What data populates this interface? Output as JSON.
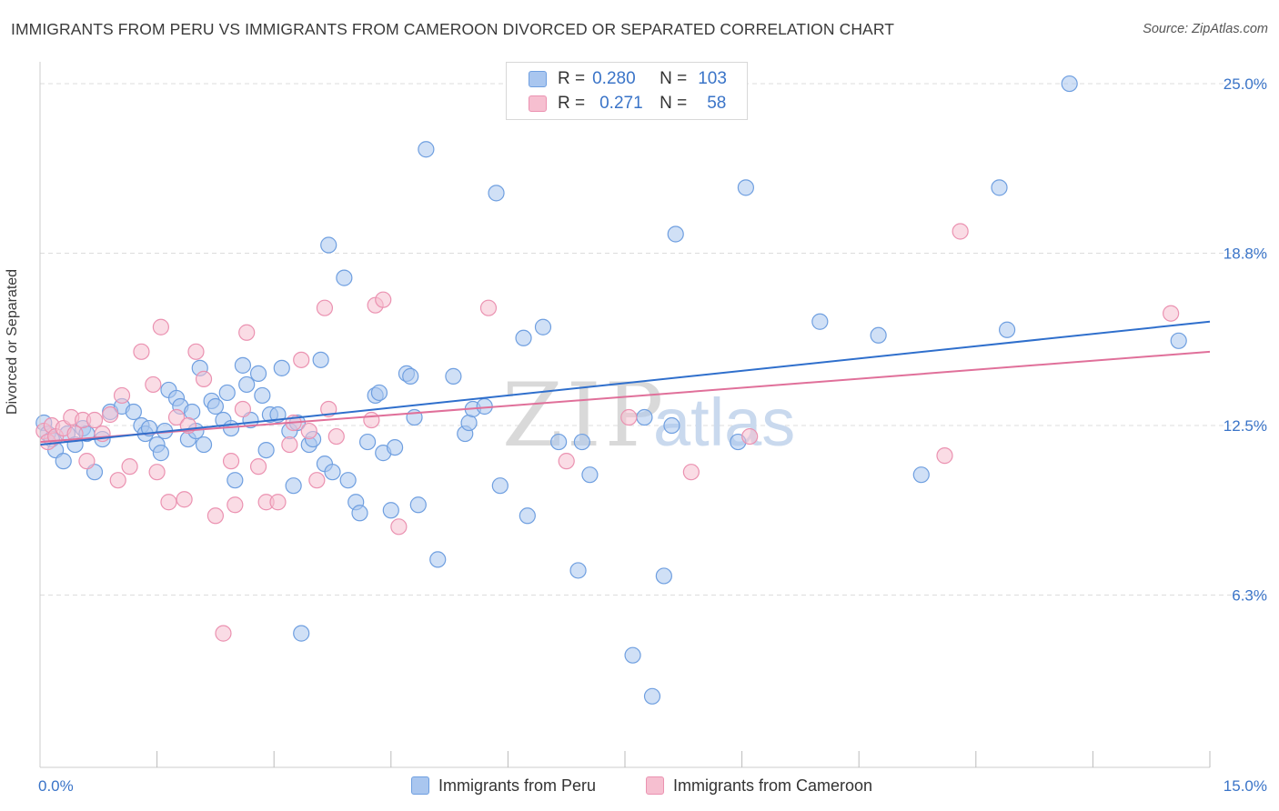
{
  "title": "IMMIGRANTS FROM PERU VS IMMIGRANTS FROM CAMEROON DIVORCED OR SEPARATED CORRELATION CHART",
  "source": "Source: ZipAtlas.com",
  "watermark": {
    "zip": "ZIP",
    "atlas": "atlas"
  },
  "legend": {
    "r_label": "R =",
    "n_label": "N =",
    "series": [
      {
        "r": "0.280",
        "n": "103"
      },
      {
        "r": "0.271",
        "n": "58"
      }
    ]
  },
  "bottom_legend": [
    "Immigrants from Peru",
    "Immigrants from Cameroon"
  ],
  "colors": {
    "peru_fill": "#a9c6ef",
    "peru_stroke": "#6f9fe0",
    "peru_line": "#2f6fcc",
    "cameroon_fill": "#f6bfd0",
    "cameroon_stroke": "#eb92b1",
    "cameroon_line": "#e0709a",
    "tick_text": "#3a74c8",
    "grid": "#dddddd"
  },
  "chart_data": {
    "type": "scatter",
    "title": "IMMIGRANTS FROM PERU VS IMMIGRANTS FROM CAMEROON DIVORCED OR SEPARATED CORRELATION CHART",
    "xlabel": "",
    "ylabel": "Divorced or Separated",
    "xlim": [
      0,
      15
    ],
    "ylim": [
      0,
      25.8
    ],
    "x_tick_labels": [
      "0.0%",
      "15.0%"
    ],
    "y_ticks": [
      6.3,
      12.5,
      18.8,
      25.0
    ],
    "y_tick_labels": [
      "6.3%",
      "12.5%",
      "18.8%",
      "25.0%"
    ],
    "grid": true,
    "series": [
      {
        "name": "Immigrants from Peru",
        "trend": [
          [
            0,
            11.8
          ],
          [
            15,
            16.3
          ]
        ],
        "points": [
          [
            0.05,
            12.6
          ],
          [
            0.1,
            12.2
          ],
          [
            0.15,
            12.0
          ],
          [
            0.2,
            11.6
          ],
          [
            0.3,
            11.2
          ],
          [
            0.35,
            12.2
          ],
          [
            0.45,
            11.8
          ],
          [
            0.55,
            12.4
          ],
          [
            0.6,
            12.2
          ],
          [
            0.7,
            10.8
          ],
          [
            0.8,
            12.0
          ],
          [
            0.9,
            13.0
          ],
          [
            1.05,
            13.2
          ],
          [
            1.2,
            13.0
          ],
          [
            1.3,
            12.5
          ],
          [
            1.35,
            12.2
          ],
          [
            1.4,
            12.4
          ],
          [
            1.5,
            11.8
          ],
          [
            1.55,
            11.5
          ],
          [
            1.6,
            12.3
          ],
          [
            1.65,
            13.8
          ],
          [
            1.75,
            13.5
          ],
          [
            1.8,
            13.2
          ],
          [
            1.9,
            12.0
          ],
          [
            1.95,
            13.0
          ],
          [
            2.0,
            12.3
          ],
          [
            2.05,
            14.6
          ],
          [
            2.1,
            11.8
          ],
          [
            2.2,
            13.4
          ],
          [
            2.25,
            13.2
          ],
          [
            2.35,
            12.7
          ],
          [
            2.4,
            13.7
          ],
          [
            2.45,
            12.4
          ],
          [
            2.5,
            10.5
          ],
          [
            2.6,
            14.7
          ],
          [
            2.65,
            14.0
          ],
          [
            2.7,
            12.7
          ],
          [
            2.8,
            14.4
          ],
          [
            2.85,
            13.6
          ],
          [
            2.9,
            11.6
          ],
          [
            2.95,
            12.9
          ],
          [
            3.05,
            12.9
          ],
          [
            3.1,
            14.6
          ],
          [
            3.2,
            12.3
          ],
          [
            3.25,
            10.3
          ],
          [
            3.3,
            12.6
          ],
          [
            3.35,
            4.9
          ],
          [
            3.45,
            11.8
          ],
          [
            3.5,
            12.0
          ],
          [
            3.6,
            14.9
          ],
          [
            3.65,
            11.1
          ],
          [
            3.7,
            19.1
          ],
          [
            3.75,
            10.8
          ],
          [
            3.9,
            17.9
          ],
          [
            3.95,
            10.5
          ],
          [
            4.05,
            9.7
          ],
          [
            4.1,
            9.3
          ],
          [
            4.2,
            11.9
          ],
          [
            4.3,
            13.6
          ],
          [
            4.35,
            13.7
          ],
          [
            4.4,
            11.5
          ],
          [
            4.5,
            9.4
          ],
          [
            4.55,
            11.7
          ],
          [
            4.7,
            14.4
          ],
          [
            4.75,
            14.3
          ],
          [
            4.8,
            12.8
          ],
          [
            4.85,
            9.6
          ],
          [
            4.95,
            22.6
          ],
          [
            5.1,
            7.6
          ],
          [
            5.3,
            14.3
          ],
          [
            5.45,
            12.2
          ],
          [
            5.5,
            12.6
          ],
          [
            5.55,
            13.1
          ],
          [
            5.7,
            13.2
          ],
          [
            5.85,
            21.0
          ],
          [
            5.9,
            10.3
          ],
          [
            6.2,
            15.7
          ],
          [
            6.25,
            9.2
          ],
          [
            6.45,
            16.1
          ],
          [
            6.65,
            11.9
          ],
          [
            6.75,
            24.4
          ],
          [
            6.9,
            7.2
          ],
          [
            6.95,
            11.9
          ],
          [
            7.05,
            10.7
          ],
          [
            7.6,
            4.1
          ],
          [
            7.75,
            12.8
          ],
          [
            7.85,
            2.6
          ],
          [
            8.0,
            7.0
          ],
          [
            8.1,
            12.5
          ],
          [
            8.15,
            19.5
          ],
          [
            8.95,
            11.9
          ],
          [
            9.05,
            21.2
          ],
          [
            10.0,
            16.3
          ],
          [
            10.75,
            15.8
          ],
          [
            11.3,
            10.7
          ],
          [
            12.3,
            21.2
          ],
          [
            12.4,
            16.0
          ],
          [
            13.2,
            25.0
          ],
          [
            14.6,
            15.6
          ]
        ]
      },
      {
        "name": "Immigrants from Cameroon",
        "trend": [
          [
            0,
            11.9
          ],
          [
            15,
            15.2
          ]
        ],
        "points": [
          [
            0.05,
            12.3
          ],
          [
            0.1,
            11.9
          ],
          [
            0.15,
            12.5
          ],
          [
            0.2,
            12.1
          ],
          [
            0.3,
            12.4
          ],
          [
            0.4,
            12.8
          ],
          [
            0.45,
            12.2
          ],
          [
            0.55,
            12.7
          ],
          [
            0.6,
            11.2
          ],
          [
            0.7,
            12.7
          ],
          [
            0.8,
            12.2
          ],
          [
            0.9,
            12.9
          ],
          [
            1.0,
            10.5
          ],
          [
            1.05,
            13.6
          ],
          [
            1.15,
            11.0
          ],
          [
            1.3,
            15.2
          ],
          [
            1.45,
            14.0
          ],
          [
            1.5,
            10.8
          ],
          [
            1.55,
            16.1
          ],
          [
            1.65,
            9.7
          ],
          [
            1.75,
            12.8
          ],
          [
            1.85,
            9.8
          ],
          [
            1.9,
            12.5
          ],
          [
            2.0,
            15.2
          ],
          [
            2.1,
            14.2
          ],
          [
            2.25,
            9.2
          ],
          [
            2.35,
            4.9
          ],
          [
            2.45,
            11.2
          ],
          [
            2.5,
            9.6
          ],
          [
            2.6,
            13.1
          ],
          [
            2.65,
            15.9
          ],
          [
            2.8,
            11.0
          ],
          [
            2.9,
            9.7
          ],
          [
            3.05,
            9.7
          ],
          [
            3.2,
            11.8
          ],
          [
            3.25,
            12.6
          ],
          [
            3.35,
            14.9
          ],
          [
            3.45,
            12.3
          ],
          [
            3.55,
            10.5
          ],
          [
            3.65,
            16.8
          ],
          [
            3.7,
            13.1
          ],
          [
            3.8,
            12.1
          ],
          [
            4.25,
            12.7
          ],
          [
            4.3,
            16.9
          ],
          [
            4.4,
            17.1
          ],
          [
            4.6,
            8.8
          ],
          [
            5.75,
            16.8
          ],
          [
            6.75,
            11.2
          ],
          [
            7.55,
            12.8
          ],
          [
            8.35,
            10.8
          ],
          [
            9.1,
            12.1
          ],
          [
            11.6,
            11.4
          ],
          [
            11.8,
            19.6
          ],
          [
            14.5,
            16.6
          ]
        ]
      }
    ]
  }
}
